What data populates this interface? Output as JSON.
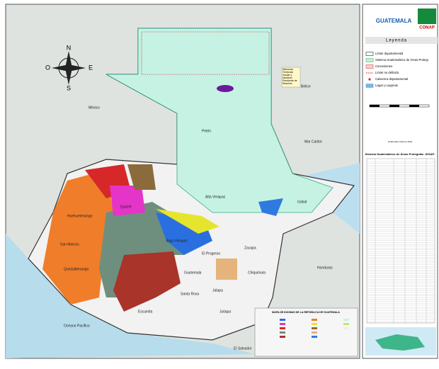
{
  "header": {
    "logo_left": "GUATEMALA",
    "logo_right": "CONAP"
  },
  "legend": {
    "title": "Leyenda",
    "items": [
      "Límite departamental",
      "Sistema Guatemalteco de Áreas Protegi",
      "Concesiones",
      "Límite no definido",
      "Cabecera departamental",
      "Lagos y Lagunas"
    ]
  },
  "map": {
    "compass": [
      "N",
      "S",
      "E",
      "O"
    ],
    "countries": [
      "México",
      "Belice",
      "Honduras",
      "El Salvador",
      "Océano Pacífico",
      "Mar Caribe"
    ],
    "departments": [
      "Petén",
      "Izabal",
      "Alta Verapaz",
      "Huehuetenango",
      "San Marcos",
      "Quiché",
      "Baja Verapaz",
      "El Progreso",
      "Zacapa",
      "Chiquimula",
      "Jalapa",
      "Jutiapa",
      "Santa Rosa",
      "Escuintla",
      "Guatemala",
      "Quetzaltenango"
    ],
    "note": "Diferendo Territorial, Insular y Marítimo Pendiente de Resolver"
  },
  "inset": {
    "title": "MAPA DE IDIOMAS DE LA REPÚBLICA DE GUATEMALA"
  },
  "panel": {
    "date": "Guatemala, Febrero 2019",
    "table_title": "Sistema Guatemalteco de Áreas Protegidas -SIGAP-"
  }
}
